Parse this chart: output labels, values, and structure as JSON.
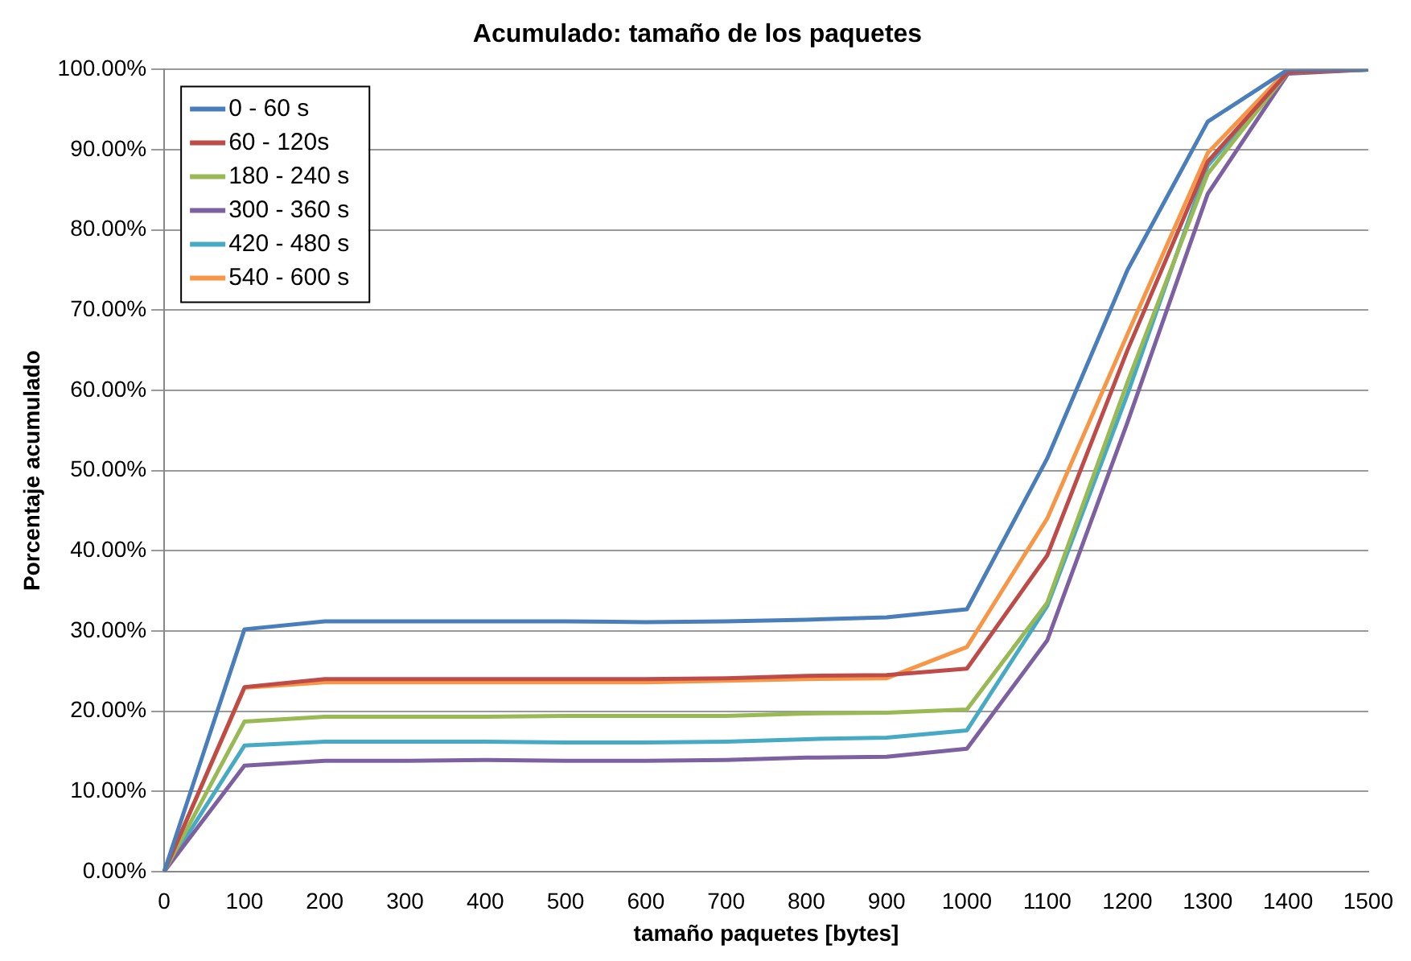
{
  "chart_data": {
    "type": "line",
    "title": "Acumulado: tamaño de los paquetes",
    "xlabel": "tamaño paquetes [bytes]",
    "ylabel": "Porcentaje acumulado",
    "categories": [
      "0",
      "100",
      "200",
      "300",
      "400",
      "500",
      "600",
      "700",
      "800",
      "900",
      "1000",
      "1100",
      "1200",
      "1300",
      "1400",
      "1500"
    ],
    "ylim": [
      0,
      100
    ],
    "yticks": [
      {
        "value": 0,
        "label": "0.00%"
      },
      {
        "value": 10,
        "label": "10.00%"
      },
      {
        "value": 20,
        "label": "20.00%"
      },
      {
        "value": 30,
        "label": "30.00%"
      },
      {
        "value": 40,
        "label": "40.00%"
      },
      {
        "value": 50,
        "label": "50.00%"
      },
      {
        "value": 60,
        "label": "60.00%"
      },
      {
        "value": 70,
        "label": "70.00%"
      },
      {
        "value": 80,
        "label": "80.00%"
      },
      {
        "value": 90,
        "label": "90.00%"
      },
      {
        "value": 100,
        "label": "100.00%"
      }
    ],
    "grid": "y",
    "legend": "top left",
    "marker": "none",
    "line_style": "solid",
    "series": [
      {
        "name": "0 - 60 s",
        "color": "#4a7ebb",
        "values": [
          0,
          30.2,
          31.2,
          31.2,
          31.2,
          31.2,
          31.1,
          31.2,
          31.4,
          31.7,
          32.7,
          51.5,
          75,
          93.5,
          100,
          100
        ]
      },
      {
        "name": "60 - 120s",
        "color": "#be4b48",
        "values": [
          0,
          23,
          24,
          24,
          24,
          24,
          24,
          24.1,
          24.4,
          24.5,
          25.3,
          39.4,
          65,
          88.5,
          99.7,
          100
        ]
      },
      {
        "name": "180 - 240 s",
        "color": "#98b954",
        "values": [
          0,
          18.7,
          19.3,
          19.3,
          19.3,
          19.4,
          19.4,
          19.4,
          19.7,
          19.8,
          20.2,
          33.5,
          61,
          87,
          99.7,
          100
        ]
      },
      {
        "name": "300 - 360 s",
        "color": "#7d60a0",
        "values": [
          0,
          13.2,
          13.8,
          13.8,
          13.9,
          13.8,
          13.8,
          13.9,
          14.2,
          14.3,
          15.3,
          28.8,
          56,
          84.5,
          99.5,
          100
        ]
      },
      {
        "name": "420 - 480 s",
        "color": "#46aac5",
        "values": [
          0,
          15.7,
          16.2,
          16.2,
          16.2,
          16.1,
          16.1,
          16.2,
          16.5,
          16.7,
          17.6,
          33.1,
          59.5,
          88,
          99.7,
          100
        ]
      },
      {
        "name": "540 - 600 s",
        "color": "#f79646",
        "values": [
          0,
          22.9,
          23.6,
          23.6,
          23.6,
          23.6,
          23.6,
          23.8,
          24,
          24.1,
          28,
          44,
          67,
          89.6,
          100,
          100
        ]
      }
    ]
  }
}
